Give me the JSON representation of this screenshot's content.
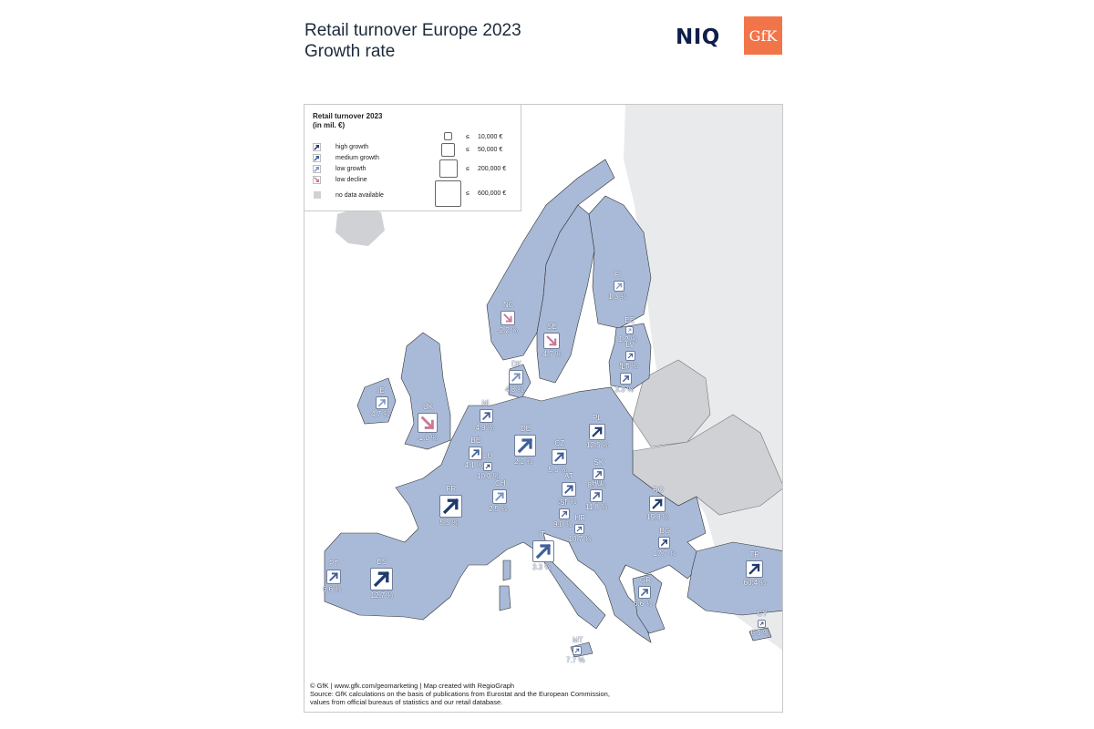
{
  "header": {
    "title_line1": "Retail turnover Europe 2023",
    "title_line2": "Growth rate",
    "logo_niq": "NIQ",
    "logo_gfk": "GfK"
  },
  "legend": {
    "title_line1": "Retail turnover 2023",
    "title_line2": "(in mil. €)",
    "categories": [
      {
        "label": "high growth",
        "arrow": "up",
        "color": "#1f3a6e"
      },
      {
        "label": "medium growth",
        "arrow": "up",
        "color": "#3f5e9a"
      },
      {
        "label": "low growth",
        "arrow": "up",
        "color": "#7a94c4"
      },
      {
        "label": "low decline",
        "arrow": "down",
        "color": "#c97a94"
      },
      {
        "label": "no data available",
        "arrow": "none",
        "color": "#cfd1d4"
      }
    ],
    "sizes": [
      {
        "le": "≤",
        "value": "10,000 €"
      },
      {
        "le": "≤",
        "value": "50,000 €"
      },
      {
        "le": "≤",
        "value": "200,000 €"
      },
      {
        "le": "≤",
        "value": "600,000 €"
      }
    ]
  },
  "colors": {
    "data_country": "#a9bad8",
    "no_data_country": "#cfd1d4",
    "non_europe": "#e8eaec",
    "sea": "#ffffff",
    "high": "#1f3a6e",
    "medium": "#3f5e9a",
    "low": "#7a94c4",
    "decline": "#c97a94"
  },
  "countries": [
    {
      "code": "FI",
      "value": "1.3 %",
      "category": "low growth"
    },
    {
      "code": "NO",
      "value": "-2.2 %",
      "category": "low decline"
    },
    {
      "code": "SE",
      "value": "-4.7 %",
      "category": "low decline"
    },
    {
      "code": "EE",
      "value": "1.2 %",
      "category": "low growth"
    },
    {
      "code": "LV",
      "value": "5.5 %",
      "category": "medium growth"
    },
    {
      "code": "LT",
      "value": "3.3 %",
      "category": "medium growth"
    },
    {
      "code": "DK",
      "value": "4.8 %",
      "category": "low growth"
    },
    {
      "code": "IE",
      "value": "4.7 %",
      "category": "low growth"
    },
    {
      "code": "UK",
      "value": "-1.0 %",
      "category": "low decline"
    },
    {
      "code": "NL",
      "value": "4.9 %",
      "category": "medium growth"
    },
    {
      "code": "BE",
      "value": "4.1 %",
      "category": "medium growth"
    },
    {
      "code": "LU",
      "value": "10.0 %",
      "category": "high growth"
    },
    {
      "code": "DE",
      "value": "2.2 %",
      "category": "medium growth"
    },
    {
      "code": "PL",
      "value": "12.5 %",
      "category": "high growth"
    },
    {
      "code": "CZ",
      "value": "5.5 %",
      "category": "medium growth"
    },
    {
      "code": "SK",
      "value": "8.0 %",
      "category": "medium growth"
    },
    {
      "code": "FR",
      "value": "5.5 %",
      "category": "high growth"
    },
    {
      "code": "CH",
      "value": "2.5 %",
      "category": "low growth"
    },
    {
      "code": "AT",
      "value": "3.7 %",
      "category": "medium growth"
    },
    {
      "code": "HU",
      "value": "11.8 %",
      "category": "medium growth"
    },
    {
      "code": "SI",
      "value": "9.0 %",
      "category": "medium growth"
    },
    {
      "code": "HR",
      "value": "10.7 %",
      "category": "medium growth"
    },
    {
      "code": "RO",
      "value": "19.8 %",
      "category": "high growth"
    },
    {
      "code": "BG",
      "value": "17.7 %",
      "category": "high growth"
    },
    {
      "code": "IT",
      "value": "3.3 %",
      "category": "medium growth"
    },
    {
      "code": "PT",
      "value": "6.6 %",
      "category": "medium growth"
    },
    {
      "code": "ES",
      "value": "12.7 %",
      "category": "high growth"
    },
    {
      "code": "GR",
      "value": "6.6 %",
      "category": "medium growth"
    },
    {
      "code": "TR",
      "value": "60.4 %",
      "category": "high growth"
    },
    {
      "code": "CY",
      "value": "6.5 %",
      "category": "high growth"
    },
    {
      "code": "MT",
      "value": "7.7 %",
      "category": "medium growth"
    }
  ],
  "credits": {
    "line1": "© GfK | www.gfk.com/geomarketing | Map created with RegioGraph",
    "line2": "Source: GfK calculations on the basis of publications from Eurostat and the European Commission,",
    "line3": "values from official bureaus of statistics and our retail database."
  }
}
